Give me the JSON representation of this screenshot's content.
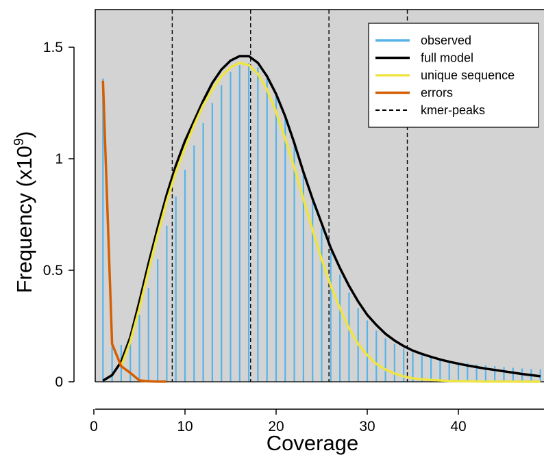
{
  "chart_data": {
    "type": "line",
    "xlabel": "Coverage",
    "ylabel": "Frequency (x10",
    "ylabel_sup": "9",
    "ylabel_close": ")",
    "xlim": [
      0,
      49
    ],
    "ylim": [
      0,
      1.65
    ],
    "x_ticks": [
      0,
      10,
      20,
      30,
      40
    ],
    "y_ticks": [
      0,
      0.5,
      1,
      1.5
    ],
    "x_tick_labels": [
      "0",
      "10",
      "20",
      "30",
      "40"
    ],
    "y_tick_labels": [
      "0",
      "0.5",
      "1",
      "1.5"
    ],
    "background_color": "#d3d3d3",
    "grid": false,
    "legend_position": "top-right",
    "legend": [
      {
        "label": "observed",
        "color": "#56b4e9",
        "style": "solid"
      },
      {
        "label": "full model",
        "color": "#000000",
        "style": "solid"
      },
      {
        "label": "unique sequence",
        "color": "#f0e442",
        "style": "solid"
      },
      {
        "label": "errors",
        "color": "#d55e00",
        "style": "solid"
      },
      {
        "label": "kmer-peaks",
        "color": "#000000",
        "style": "dashed"
      }
    ],
    "kmer_peaks": [
      8.6,
      17.2,
      25.8,
      34.4
    ],
    "observed": {
      "name": "observed",
      "color": "#56b4e9",
      "x": [
        1,
        2,
        3,
        4,
        5,
        6,
        7,
        8,
        9,
        10,
        11,
        12,
        13,
        14,
        15,
        16,
        17,
        18,
        19,
        20,
        21,
        22,
        23,
        24,
        25,
        26,
        27,
        28,
        29,
        30,
        31,
        32,
        33,
        34,
        35,
        36,
        37,
        38,
        39,
        40,
        41,
        42,
        43,
        44,
        45,
        46,
        47,
        48,
        49
      ],
      "y": [
        1.36,
        0.16,
        0.165,
        0.2,
        0.3,
        0.42,
        0.55,
        0.7,
        0.83,
        0.95,
        1.06,
        1.16,
        1.25,
        1.33,
        1.39,
        1.42,
        1.43,
        1.41,
        1.36,
        1.28,
        1.18,
        1.06,
        0.94,
        0.81,
        0.69,
        0.58,
        0.48,
        0.4,
        0.33,
        0.275,
        0.23,
        0.195,
        0.17,
        0.15,
        0.13,
        0.118,
        0.108,
        0.1,
        0.094,
        0.088,
        0.083,
        0.078,
        0.074,
        0.07,
        0.066,
        0.063,
        0.06,
        0.058,
        0.056
      ]
    },
    "full_model": {
      "name": "full model",
      "color": "#000000",
      "x": [
        1,
        2,
        3,
        4,
        5,
        6,
        7,
        8,
        9,
        10,
        11,
        12,
        13,
        14,
        15,
        16,
        17,
        18,
        19,
        20,
        21,
        22,
        23,
        24,
        25,
        26,
        27,
        28,
        29,
        30,
        31,
        32,
        33,
        34,
        35,
        36,
        37,
        38,
        39,
        40,
        41,
        42,
        43,
        44,
        45,
        46,
        47,
        48,
        49
      ],
      "y": [
        0.005,
        0.03,
        0.09,
        0.2,
        0.36,
        0.53,
        0.69,
        0.84,
        0.97,
        1.08,
        1.17,
        1.26,
        1.34,
        1.4,
        1.44,
        1.46,
        1.46,
        1.43,
        1.37,
        1.29,
        1.19,
        1.07,
        0.94,
        0.82,
        0.71,
        0.6,
        0.51,
        0.43,
        0.36,
        0.3,
        0.255,
        0.215,
        0.185,
        0.16,
        0.14,
        0.125,
        0.112,
        0.1,
        0.09,
        0.081,
        0.073,
        0.066,
        0.059,
        0.053,
        0.047,
        0.041,
        0.035,
        0.03,
        0.025
      ]
    },
    "unique_sequence": {
      "name": "unique sequence",
      "color": "#f0e442",
      "x": [
        3,
        4,
        5,
        6,
        7,
        8,
        9,
        10,
        11,
        12,
        13,
        14,
        15,
        16,
        17,
        18,
        19,
        20,
        21,
        22,
        23,
        24,
        25,
        26,
        27,
        28,
        29,
        30,
        31,
        32,
        33,
        34,
        35,
        36,
        37,
        38,
        39,
        40,
        41,
        42,
        43,
        44,
        45,
        46,
        47,
        48,
        49
      ],
      "y": [
        0.07,
        0.18,
        0.33,
        0.5,
        0.66,
        0.81,
        0.94,
        1.05,
        1.15,
        1.24,
        1.31,
        1.37,
        1.41,
        1.43,
        1.42,
        1.38,
        1.31,
        1.21,
        1.09,
        0.96,
        0.82,
        0.68,
        0.55,
        0.43,
        0.33,
        0.24,
        0.17,
        0.12,
        0.08,
        0.055,
        0.037,
        0.024,
        0.016,
        0.011,
        0.008,
        0.006,
        0.004,
        0.003,
        0.002,
        0.0015,
        0.001,
        0.0008,
        0.0006,
        0.0005,
        0.0004,
        0.0003,
        0.0002
      ]
    },
    "errors": {
      "name": "errors",
      "color": "#d55e00",
      "x": [
        1,
        2,
        3,
        4,
        5,
        6,
        7,
        8
      ],
      "y": [
        1.35,
        0.17,
        0.07,
        0.04,
        0.006,
        0.002,
        0.001,
        0.001
      ]
    }
  }
}
